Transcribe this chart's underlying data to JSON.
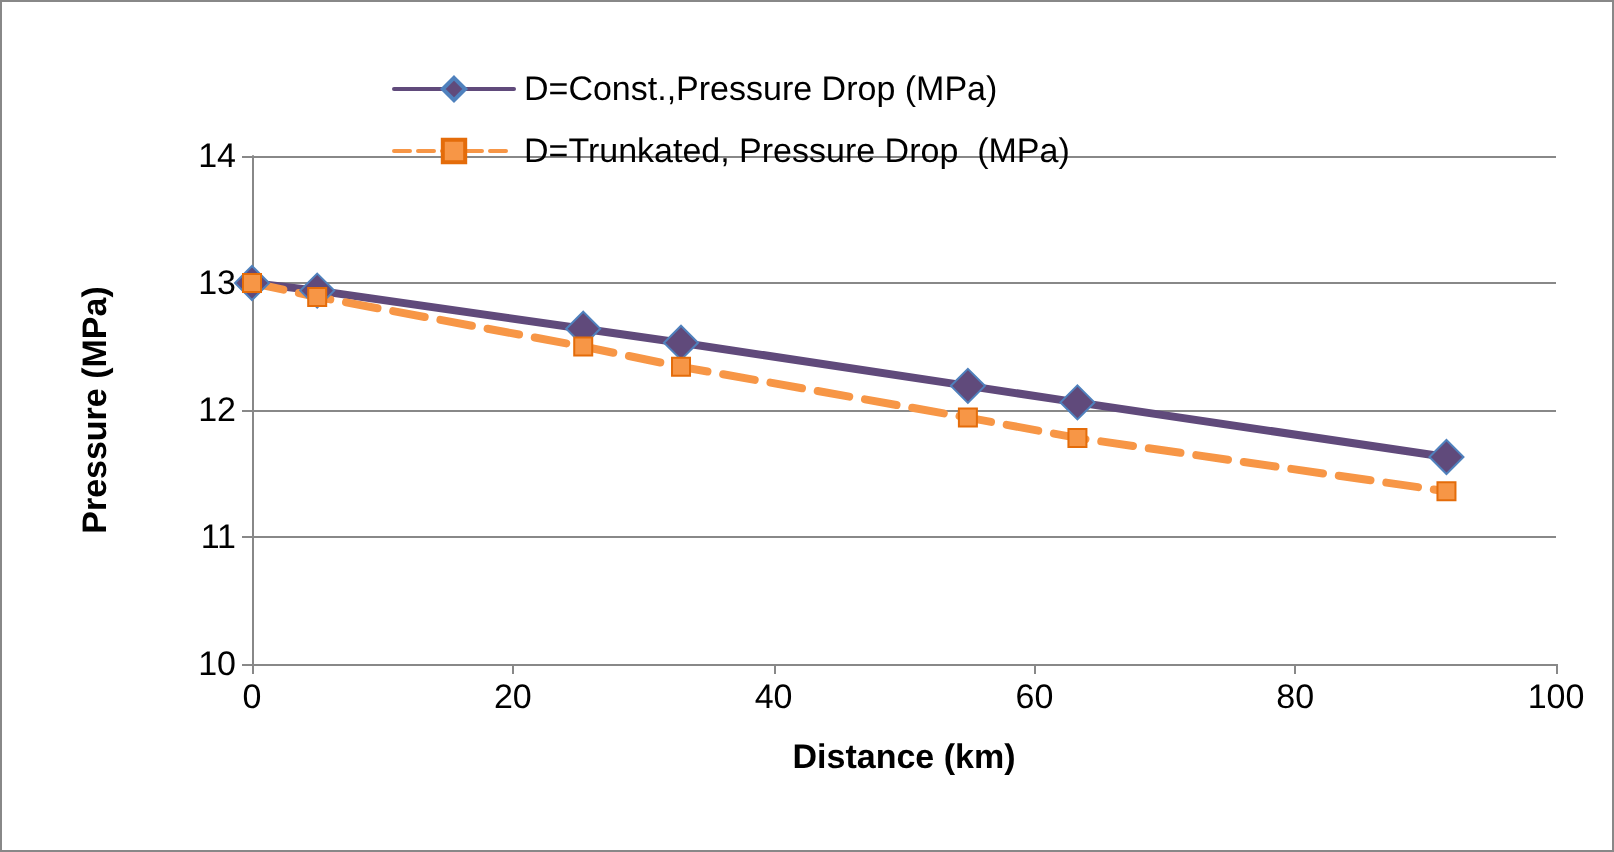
{
  "chart_data": {
    "type": "line",
    "xlabel": "Distance (km)",
    "ylabel": "Pressure (MPa)",
    "xlim": [
      0,
      100
    ],
    "xticks": [
      0,
      20,
      40,
      60,
      80,
      100
    ],
    "ylim": [
      10,
      14
    ],
    "yticks": [
      10,
      11,
      12,
      13,
      14
    ],
    "grid": "y",
    "legend": "top",
    "series": [
      {
        "name": "D=Const.,Pressure Drop (MPa)",
        "color": "#604a7b",
        "marker": "diamond",
        "line_style": "solid",
        "x": [
          0,
          5,
          25.4,
          32.9,
          54.9,
          63.3,
          91.6
        ],
        "values": [
          13.0,
          12.94,
          12.64,
          12.53,
          12.19,
          12.06,
          11.63
        ]
      },
      {
        "name": "D=Trunkated, Pressure Drop  (MPa)",
        "color": "#f79646",
        "marker": "square",
        "line_style": "dashed",
        "x": [
          0,
          5,
          25.4,
          32.9,
          54.9,
          63.3,
          91.6
        ],
        "values": [
          13.0,
          12.89,
          12.5,
          12.34,
          11.94,
          11.78,
          11.36
        ]
      }
    ]
  }
}
